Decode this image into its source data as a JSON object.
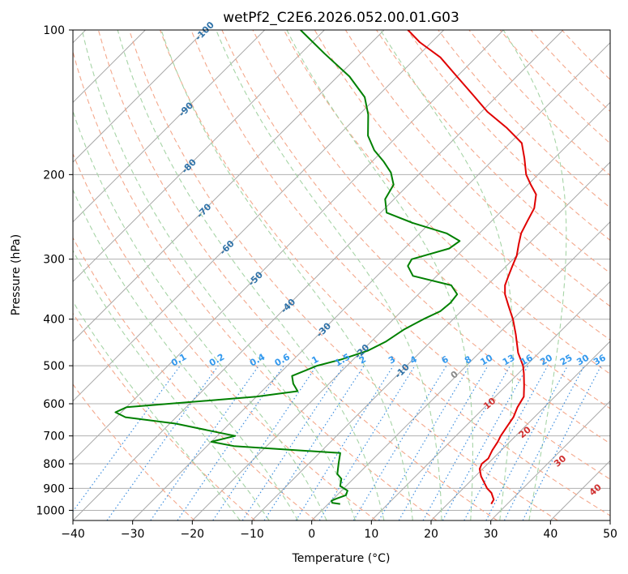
{
  "chart_data": {
    "type": "line",
    "subtype": "skew-t log-p diagram",
    "title": "wetPf2_C2E6.2026.052.00.01.G03",
    "xlabel": "Temperature (°C)",
    "ylabel": "Pressure (hPa)",
    "xlim": [
      -40,
      50
    ],
    "ylim": [
      1050,
      100
    ],
    "y_scale": "log",
    "grid": true,
    "x_ticks": [
      "−40",
      "−30",
      "−20",
      "−10",
      "0",
      "10",
      "20",
      "30",
      "40",
      "50"
    ],
    "y_ticks": [
      "100",
      "200",
      "300",
      "400",
      "500",
      "600",
      "700",
      "800",
      "900",
      "1000"
    ],
    "colors": {
      "temperature": "#e00000",
      "dewpoint": "#008000",
      "isotherm": "#a8a8a8",
      "dry_adiabat": "#f4a88c",
      "moist_adiabat": "#a6d4a6",
      "mixing_ratio": "#3f8fdf",
      "isotherm_label": "#2f72a8",
      "moist_label": "#d03030",
      "mixing_label": "#3399ee"
    },
    "series": [
      {
        "role": "temperature",
        "points": [
          [
            27.3,
            970
          ],
          [
            27.0,
            950
          ],
          [
            25.5,
            920
          ],
          [
            24.0,
            900
          ],
          [
            21.0,
            850
          ],
          [
            19.5,
            820
          ],
          [
            19.0,
            800
          ],
          [
            19.2,
            780
          ],
          [
            18.5,
            750
          ],
          [
            18.0,
            720
          ],
          [
            17.5,
            700
          ],
          [
            17.0,
            670
          ],
          [
            16.5,
            640
          ],
          [
            15.5,
            610
          ],
          [
            14.8,
            580
          ],
          [
            13.0,
            550
          ],
          [
            11.0,
            520
          ],
          [
            9.5,
            500
          ],
          [
            6.5,
            470
          ],
          [
            3.0,
            430
          ],
          [
            0.0,
            400
          ],
          [
            -3.0,
            375
          ],
          [
            -5.5,
            355
          ],
          [
            -7.0,
            340
          ],
          [
            -8.0,
            325
          ],
          [
            -9.0,
            310
          ],
          [
            -10.0,
            295
          ],
          [
            -11.5,
            280
          ],
          [
            -13.0,
            265
          ],
          [
            -14.0,
            250
          ],
          [
            -15.0,
            235
          ],
          [
            -17.0,
            220
          ],
          [
            -19.5,
            210
          ],
          [
            -22.0,
            200
          ],
          [
            -25.0,
            185
          ],
          [
            -28.0,
            172
          ],
          [
            -33.0,
            160
          ],
          [
            -39.0,
            148
          ],
          [
            -44.0,
            137
          ],
          [
            -50.0,
            125
          ],
          [
            -56.0,
            114
          ],
          [
            -62.0,
            106
          ],
          [
            -66.0,
            100
          ]
        ]
      },
      {
        "role": "dewpoint",
        "points": [
          [
            2.0,
            970
          ],
          [
            0.5,
            965
          ],
          [
            0.0,
            955
          ],
          [
            0.5,
            945
          ],
          [
            1.5,
            930
          ],
          [
            1.0,
            910
          ],
          [
            -1.0,
            890
          ],
          [
            -2.0,
            860
          ],
          [
            -3.5,
            840
          ],
          [
            -5.0,
            800
          ],
          [
            -6.5,
            760
          ],
          [
            -25.5,
            735
          ],
          [
            -30.0,
            720
          ],
          [
            -27.0,
            700
          ],
          [
            -39.0,
            660
          ],
          [
            -48.5,
            640
          ],
          [
            -51.0,
            625
          ],
          [
            -50.0,
            610
          ],
          [
            -30.0,
            580
          ],
          [
            -24.0,
            565
          ],
          [
            -26.0,
            545
          ],
          [
            -27.5,
            525
          ],
          [
            -25.0,
            500
          ],
          [
            -22.0,
            485
          ],
          [
            -19.0,
            465
          ],
          [
            -17.5,
            445
          ],
          [
            -16.5,
            420
          ],
          [
            -15.0,
            400
          ],
          [
            -13.5,
            385
          ],
          [
            -13.2,
            370
          ],
          [
            -13.5,
            355
          ],
          [
            -16.0,
            340
          ],
          [
            -24.0,
            325
          ],
          [
            -26.5,
            310
          ],
          [
            -27.0,
            300
          ],
          [
            -22.5,
            285
          ],
          [
            -22.0,
            275
          ],
          [
            -25.5,
            265
          ],
          [
            -33.0,
            252
          ],
          [
            -39.0,
            240
          ],
          [
            -41.5,
            225
          ],
          [
            -42.5,
            210
          ],
          [
            -45.0,
            198
          ],
          [
            -48.0,
            188
          ],
          [
            -51.5,
            178
          ],
          [
            -55.0,
            166
          ],
          [
            -58.5,
            150
          ],
          [
            -62.0,
            138
          ],
          [
            -68.0,
            125
          ],
          [
            -76.0,
            112
          ],
          [
            -84.0,
            100
          ]
        ]
      }
    ],
    "dry_adiabats_K": [
      250,
      260,
      270,
      280,
      290,
      300,
      310,
      320,
      330,
      340,
      350,
      360,
      370,
      380,
      390,
      400,
      410,
      420,
      430,
      440,
      450
    ],
    "moist_adiabats_C": [
      -15,
      -10,
      -5,
      0,
      5,
      10,
      15,
      20,
      25,
      30,
      35
    ],
    "mixing_ratio_lines": [
      "0.1",
      "0.2",
      "0.4",
      "0.6",
      "1",
      "1.5",
      "2",
      "3",
      "4",
      "6",
      "8",
      "10",
      "13",
      "16",
      "20",
      "25",
      "30",
      "36"
    ],
    "isotherm_labels": [
      {
        "t": -100,
        "label": "-100"
      },
      {
        "t": -90,
        "label": "-90"
      },
      {
        "t": -80,
        "label": "-80"
      },
      {
        "t": -70,
        "label": "-70"
      },
      {
        "t": -60,
        "label": "-60"
      },
      {
        "t": -50,
        "label": "-50"
      },
      {
        "t": -40,
        "label": "-40"
      },
      {
        "t": -30,
        "label": "-30"
      },
      {
        "t": -20,
        "label": "-20"
      },
      {
        "t": -10,
        "label": "-10"
      }
    ],
    "moist_adiabat_labels": [
      {
        "t": 0,
        "label": "0",
        "color": "gray"
      },
      {
        "t": 10,
        "label": "10",
        "color": "red"
      },
      {
        "t": 20,
        "label": "20",
        "color": "red"
      },
      {
        "t": 30,
        "label": "30",
        "color": "red"
      },
      {
        "t": 40,
        "label": "40",
        "color": "red"
      }
    ]
  }
}
